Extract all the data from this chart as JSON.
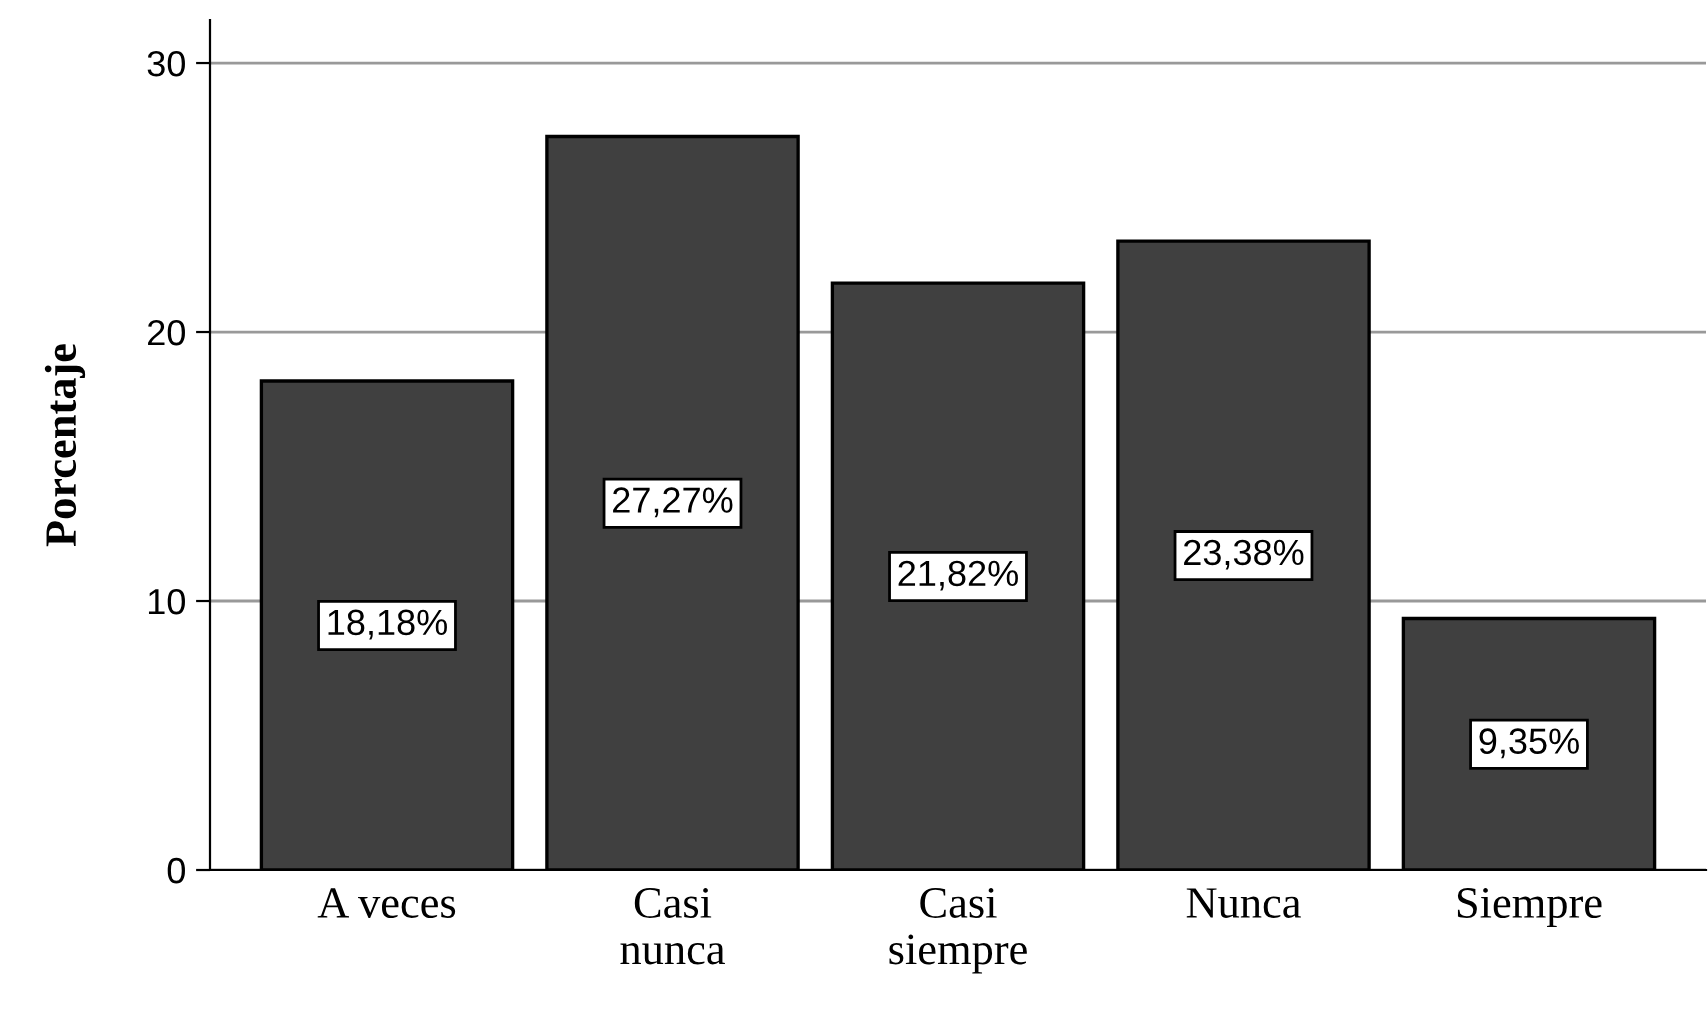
{
  "chart_data": {
    "type": "bar",
    "ylabel": "Porcentaje",
    "categories": [
      "A veces",
      "Casi\nnunca",
      "Casi\nsiempre",
      "Nunca",
      "Siempre"
    ],
    "values": [
      18.18,
      27.27,
      21.82,
      23.38,
      9.35
    ],
    "value_labels": [
      "18,18%",
      "27,27%",
      "21,82%",
      "23,38%",
      "9,35%"
    ],
    "color": "#404040",
    "ylim": [
      0,
      31.6
    ],
    "yticks": [
      0,
      10,
      20,
      30
    ],
    "grid": "y"
  }
}
